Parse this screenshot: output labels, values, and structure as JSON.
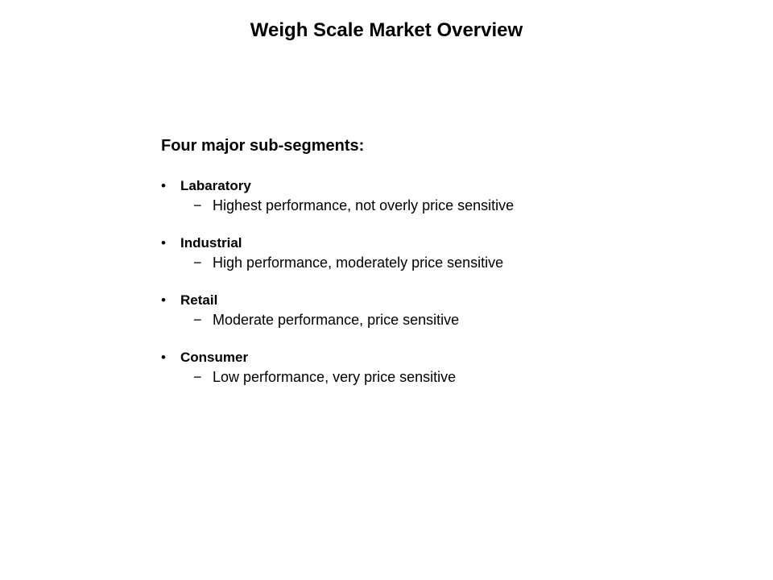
{
  "title": "Weigh Scale Market Overview",
  "subheading": "Four major sub-segments:",
  "bullet_char": "•",
  "dash_char": "−",
  "segments": [
    {
      "name": "Labaratory",
      "desc": "Highest performance, not overly price sensitive"
    },
    {
      "name": "Industrial",
      "desc": "High performance, moderately price sensitive"
    },
    {
      "name": "Retail",
      "desc": "Moderate performance, price sensitive"
    },
    {
      "name": "Consumer",
      "desc": "Low performance, very price sensitive"
    }
  ],
  "style": {
    "background_color": "#ffffff",
    "text_color": "#000000",
    "title_fontsize": 24,
    "subheading_fontsize": 20,
    "segment_name_fontsize": 17,
    "segment_desc_fontsize": 18,
    "font_family": "Verdana"
  }
}
